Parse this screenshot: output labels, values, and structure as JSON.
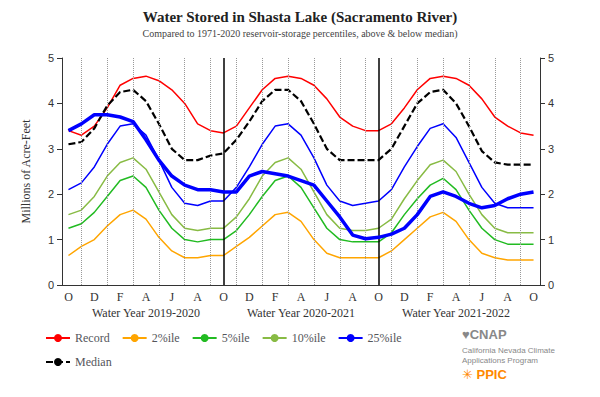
{
  "chart_data": {
    "type": "line",
    "title": "Water Stored in Shasta Lake (Sacramento River)",
    "subtitle": "Compared to 1971-2020 reservoir-storage percentiles, above & below median)",
    "ylabel": "Millions of Acre-Feet",
    "categories": [
      "O",
      null,
      "D",
      null,
      "F",
      null,
      "A",
      null,
      "J",
      null,
      "A",
      null,
      "O",
      null,
      "D",
      null,
      "F",
      null,
      "A",
      null,
      "J",
      null,
      "A",
      null,
      "O",
      null,
      "D",
      null,
      "F",
      null,
      "A",
      null,
      "J",
      null,
      "A",
      null,
      "O"
    ],
    "series": [
      {
        "name": "Record",
        "color": "#ff0000",
        "values": [
          3.4,
          3.3,
          3.5,
          3.9,
          4.4,
          4.55,
          4.6,
          4.5,
          4.3,
          4.0,
          3.55,
          3.4,
          3.35,
          3.5,
          3.9,
          4.3,
          4.55,
          4.6,
          4.55,
          4.4,
          4.1,
          3.7,
          3.5,
          3.4,
          3.4,
          3.55,
          3.9,
          4.3,
          4.55,
          4.6,
          4.55,
          4.4,
          4.1,
          3.7,
          3.5,
          3.35,
          3.3
        ]
      },
      {
        "name": "2%ile",
        "color": "#ffa500",
        "values": [
          0.65,
          0.85,
          1.0,
          1.3,
          1.55,
          1.65,
          1.45,
          1.05,
          0.75,
          0.6,
          0.6,
          0.65,
          0.65,
          0.85,
          1.05,
          1.3,
          1.55,
          1.6,
          1.4,
          1.0,
          0.7,
          0.6,
          0.6,
          0.6,
          0.6,
          0.75,
          1.0,
          1.25,
          1.5,
          1.6,
          1.4,
          1.0,
          0.7,
          0.6,
          0.55,
          0.55,
          0.55
        ]
      },
      {
        "name": "5%ile",
        "color": "#22bb22",
        "values": [
          1.25,
          1.35,
          1.6,
          1.95,
          2.3,
          2.4,
          2.15,
          1.65,
          1.25,
          1.0,
          0.95,
          1.0,
          1.0,
          1.2,
          1.55,
          1.95,
          2.3,
          2.4,
          2.15,
          1.7,
          1.25,
          1.0,
          0.95,
          0.95,
          0.95,
          1.15,
          1.55,
          1.9,
          2.2,
          2.35,
          2.1,
          1.65,
          1.25,
          1.0,
          0.9,
          0.9,
          0.9
        ]
      },
      {
        "name": "10%ile",
        "color": "#88bb44",
        "values": [
          1.55,
          1.65,
          1.95,
          2.4,
          2.7,
          2.8,
          2.55,
          2.05,
          1.55,
          1.25,
          1.2,
          1.25,
          1.25,
          1.5,
          1.9,
          2.4,
          2.7,
          2.8,
          2.55,
          2.05,
          1.55,
          1.25,
          1.2,
          1.2,
          1.25,
          1.45,
          1.9,
          2.3,
          2.65,
          2.75,
          2.5,
          2.0,
          1.55,
          1.25,
          1.15,
          1.15,
          1.15
        ]
      },
      {
        "name": "25%ile",
        "color": "#0000ff",
        "values": [
          2.1,
          2.25,
          2.6,
          3.1,
          3.5,
          3.55,
          3.3,
          2.75,
          2.15,
          1.8,
          1.75,
          1.85,
          1.85,
          2.15,
          2.6,
          3.1,
          3.5,
          3.55,
          3.3,
          2.8,
          2.2,
          1.85,
          1.75,
          1.8,
          1.85,
          2.1,
          2.6,
          3.05,
          3.45,
          3.55,
          3.25,
          2.7,
          2.15,
          1.8,
          1.7,
          1.7,
          1.7
        ]
      },
      {
        "name": "Median",
        "color": "#000000",
        "line_style": "dashed",
        "values": [
          3.1,
          3.15,
          3.45,
          3.95,
          4.25,
          4.3,
          4.05,
          3.55,
          3.0,
          2.75,
          2.75,
          2.85,
          2.9,
          3.2,
          3.6,
          4.05,
          4.3,
          4.3,
          4.05,
          3.55,
          3.0,
          2.75,
          2.75,
          2.75,
          2.75,
          3.0,
          3.5,
          4.0,
          4.25,
          4.3,
          4.0,
          3.5,
          2.95,
          2.7,
          2.65,
          2.65,
          2.65
        ]
      },
      {
        "color": "#0000ff",
        "values": [
          3.4,
          3.55,
          3.75,
          3.75,
          3.7,
          3.6,
          3.2,
          2.75,
          2.4,
          2.2,
          2.1,
          2.1,
          2.05,
          2.05,
          2.4,
          2.5,
          2.45,
          2.4,
          2.3,
          2.2,
          1.85,
          1.5,
          1.1,
          1.02,
          1.05,
          1.12,
          1.25,
          1.55,
          1.95,
          2.05,
          1.95,
          1.8,
          1.7,
          1.75,
          1.9,
          2.0,
          2.05
        ]
      }
    ],
    "ylim": [
      0,
      5
    ],
    "yticks": [
      0,
      1,
      2,
      3,
      4,
      5
    ],
    "y2lim": [
      0,
      5
    ],
    "y2ticks": [
      0,
      1,
      2,
      3,
      4,
      5
    ],
    "grid": true,
    "year_dividers": [
      12,
      24
    ],
    "legend": "bottom",
    "annotations": [
      {
        "text": "Water Year 2019-2020",
        "x": 6
      },
      {
        "text": "Water Year 2020-2021",
        "x": 18
      },
      {
        "text": "Water Year 2021-2022",
        "x": 30
      },
      {
        "text": "♥CNAP",
        "color": "#888888"
      },
      {
        "text": "California Nevada Climate\nApplications Program",
        "color": "#888888"
      },
      {
        "text": "✳ PPIC",
        "color": "#ff8800"
      }
    ]
  }
}
